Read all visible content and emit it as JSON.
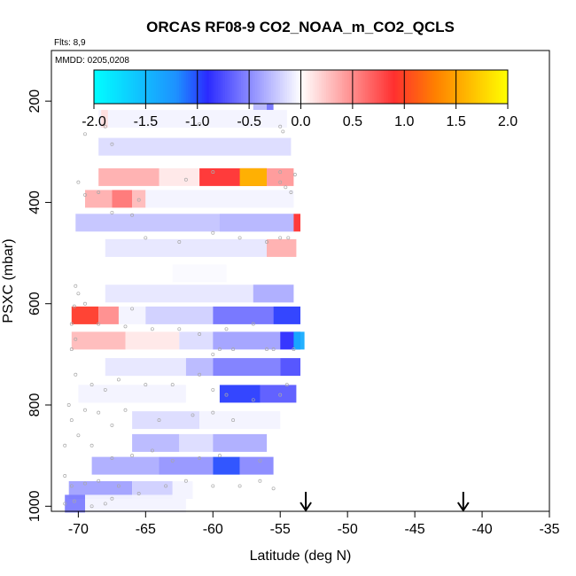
{
  "chart_data": {
    "type": "heatmap",
    "title": "ORCAS RF08-9 CO2_NOAA_m_CO2_QCLS",
    "flights_note": "Flts: 8,9",
    "date_note": "MMDD: 0205,0208",
    "xlabel": "Latitude (deg N)",
    "ylabel": "PSXC (mbar)",
    "xlim": [
      -72,
      -35
    ],
    "ylim": [
      1010,
      100
    ],
    "xticks": [
      -70,
      -65,
      -60,
      -55,
      -50,
      -45,
      -40,
      -35
    ],
    "xtick_labels": [
      "-70",
      "-65",
      "-60",
      "-55",
      "-50",
      "-45",
      "-40",
      "-35"
    ],
    "yticks": [
      200,
      400,
      600,
      800,
      1000
    ],
    "ytick_labels": [
      "200",
      "400",
      "600",
      "800",
      "1000"
    ],
    "colorbar": {
      "min": -2.0,
      "max": 2.0,
      "ticks": [
        -2.0,
        -1.5,
        -1.0,
        -0.5,
        0.0,
        0.5,
        1.0,
        1.5,
        2.0
      ],
      "tick_labels": [
        "-2.0",
        "-1.5",
        "-1.0",
        "-0.5",
        "0.0",
        "0.5",
        "1.0",
        "1.5",
        "2.0"
      ],
      "colors": [
        "#00ffff",
        "#1e90ff",
        "#2b2bff",
        "#ffffff",
        "#ff3030",
        "#ff8000",
        "#ffff00"
      ],
      "color_positions": [
        -2.0,
        -1.2,
        -0.9,
        0.0,
        0.9,
        1.3,
        2.0
      ]
    },
    "arrows_lat": [
      -53.1,
      -41.4
    ],
    "strips": [
      {
        "p": 200,
        "segs": [
          [
            -68.5,
            -55.5,
            0.0
          ],
          [
            -57,
            -56,
            -0.3
          ],
          [
            -56,
            -55.5,
            -0.6
          ]
        ]
      },
      {
        "p": 235,
        "segs": [
          [
            -68.5,
            -54.5,
            -0.05
          ],
          [
            -68.3,
            -67.8,
            0.15
          ]
        ]
      },
      {
        "p": 290,
        "segs": [
          [
            -68.5,
            -54.2,
            -0.15
          ]
        ]
      },
      {
        "p": 350,
        "segs": [
          [
            -68.5,
            -64,
            0.35
          ],
          [
            -64,
            -61,
            0.1
          ],
          [
            -61,
            -56,
            0.9
          ],
          [
            -58,
            -56,
            1.6
          ],
          [
            -56,
            -54,
            0.45
          ]
        ]
      },
      {
        "p": 393,
        "segs": [
          [
            -69.5,
            -67.5,
            0.35
          ],
          [
            -67.5,
            -66,
            0.6
          ],
          [
            -66,
            -65,
            0.3
          ],
          [
            -65,
            -54,
            -0.05
          ]
        ]
      },
      {
        "p": 440,
        "segs": [
          [
            -70.2,
            -54,
            -0.25
          ],
          [
            -59.5,
            -54,
            -0.3
          ],
          [
            -54,
            -53.5,
            0.9
          ]
        ]
      },
      {
        "p": 490,
        "segs": [
          [
            -68,
            -56,
            -0.1
          ],
          [
            -56,
            -53.8,
            0.35
          ]
        ]
      },
      {
        "p": 540,
        "segs": [
          [
            -63,
            -59,
            -0.02
          ]
        ]
      },
      {
        "p": 580,
        "segs": [
          [
            -68,
            -54,
            -0.1
          ],
          [
            -57,
            -54,
            -0.35
          ]
        ]
      },
      {
        "p": 623,
        "segs": [
          [
            -70.5,
            -68.5,
            0.95
          ],
          [
            -68.5,
            -67,
            0.5
          ],
          [
            -67,
            -65,
            -0.05
          ],
          [
            -65,
            -60,
            -0.2
          ],
          [
            -60,
            -55.5,
            -0.6
          ],
          [
            -55.5,
            -53.5,
            -0.95
          ]
        ]
      },
      {
        "p": 673,
        "segs": [
          [
            -70.5,
            -66.5,
            0.3
          ],
          [
            -66.5,
            -62.5,
            0.1
          ],
          [
            -62.5,
            -60,
            -0.15
          ],
          [
            -60,
            -55,
            -0.4
          ],
          [
            -55,
            -53.5,
            -0.9
          ],
          [
            -54,
            -53.2,
            -1.4
          ]
        ]
      },
      {
        "p": 725,
        "segs": [
          [
            -70,
            -68,
            0.0
          ],
          [
            -68,
            -62,
            -0.1
          ],
          [
            -62,
            -60,
            -0.3
          ],
          [
            -60,
            -55,
            -0.55
          ],
          [
            -55,
            -53.5,
            -0.75
          ]
        ]
      },
      {
        "p": 778,
        "segs": [
          [
            -70,
            -62,
            -0.05
          ],
          [
            -59.5,
            -56.5,
            -0.95
          ],
          [
            -56.5,
            -53.8,
            -0.7
          ]
        ]
      },
      {
        "p": 830,
        "segs": [
          [
            -69.5,
            -66,
            0.0
          ],
          [
            -66,
            -61,
            -0.15
          ],
          [
            -61,
            -55,
            -0.05
          ]
        ]
      },
      {
        "p": 875,
        "segs": [
          [
            -66,
            -62.5,
            -0.3
          ],
          [
            -62.5,
            -60,
            -0.15
          ],
          [
            -60,
            -56,
            -0.35
          ]
        ]
      },
      {
        "p": 920,
        "segs": [
          [
            -69,
            -64,
            -0.35
          ],
          [
            -64,
            -60,
            -0.45
          ],
          [
            -60,
            -58,
            -1.0
          ],
          [
            -58,
            -55.5,
            -0.5
          ]
        ]
      },
      {
        "p": 968,
        "segs": [
          [
            -70.7,
            -66,
            -0.4
          ],
          [
            -66,
            -63,
            -0.2
          ],
          [
            -63,
            -61.5,
            -0.05
          ]
        ]
      },
      {
        "p": 995,
        "segs": [
          [
            -71,
            -69.5,
            -0.55
          ],
          [
            -69.5,
            -62,
            -0.05
          ]
        ]
      }
    ],
    "sample_points": [
      [
        -67.5,
        185
      ],
      [
        -67,
        185
      ],
      [
        -66.5,
        185
      ],
      [
        -66,
        185
      ],
      [
        -65.5,
        185
      ],
      [
        -65,
        185
      ],
      [
        -64.5,
        185
      ],
      [
        -64,
        185
      ],
      [
        -63.5,
        185
      ],
      [
        -63,
        185
      ],
      [
        -62.5,
        185
      ],
      [
        -62,
        185
      ],
      [
        -60,
        185
      ],
      [
        -59.5,
        185
      ],
      [
        -59,
        185
      ],
      [
        -58.5,
        185
      ],
      [
        -58,
        185
      ],
      [
        -68.5,
        190
      ],
      [
        -61.5,
        190
      ],
      [
        -57.5,
        190
      ],
      [
        -56.5,
        190
      ],
      [
        -56,
        190
      ],
      [
        -69.5,
        265
      ],
      [
        -68,
        250
      ],
      [
        -67.5,
        285
      ],
      [
        -61,
        245
      ],
      [
        -55,
        250
      ],
      [
        -54.8,
        260
      ],
      [
        -70,
        360
      ],
      [
        -69.5,
        385
      ],
      [
        -68.5,
        380
      ],
      [
        -65.5,
        395
      ],
      [
        -62,
        355
      ],
      [
        -60,
        340
      ],
      [
        -55,
        340
      ],
      [
        -55,
        360
      ],
      [
        -54.6,
        370
      ],
      [
        -54.2,
        380
      ],
      [
        -53.9,
        345
      ],
      [
        -67.5,
        420
      ],
      [
        -66,
        425
      ],
      [
        -60,
        460
      ],
      [
        -58,
        470
      ],
      [
        -56,
        478
      ],
      [
        -55,
        470
      ],
      [
        -54.4,
        470
      ],
      [
        -65,
        470
      ],
      [
        -62.5,
        478
      ],
      [
        -70.2,
        565
      ],
      [
        -70,
        580
      ],
      [
        -70.3,
        605
      ],
      [
        -69.5,
        600
      ],
      [
        -66,
        610
      ],
      [
        -70.5,
        640
      ],
      [
        -70.2,
        670
      ],
      [
        -70.5,
        690
      ],
      [
        -68.5,
        640
      ],
      [
        -66.5,
        645
      ],
      [
        -64.5,
        650
      ],
      [
        -62.5,
        650
      ],
      [
        -61,
        660
      ],
      [
        -59,
        650
      ],
      [
        -57,
        640
      ],
      [
        -56,
        690
      ],
      [
        -60,
        700
      ],
      [
        -59.5,
        690
      ],
      [
        -58.5,
        690
      ],
      [
        -55.5,
        690
      ],
      [
        -54,
        690
      ],
      [
        -70.2,
        740
      ],
      [
        -69,
        760
      ],
      [
        -68,
        770
      ],
      [
        -67,
        750
      ],
      [
        -65,
        760
      ],
      [
        -63,
        760
      ],
      [
        -61,
        740
      ],
      [
        -60,
        770
      ],
      [
        -59,
        780
      ],
      [
        -57,
        790
      ],
      [
        -55,
        780
      ],
      [
        -54.5,
        760
      ],
      [
        -70.7,
        800
      ],
      [
        -70.5,
        830
      ],
      [
        -69.5,
        810
      ],
      [
        -68.5,
        815
      ],
      [
        -67.5,
        840
      ],
      [
        -66.5,
        810
      ],
      [
        -64,
        830
      ],
      [
        -61.5,
        820
      ],
      [
        -60,
        815
      ],
      [
        -58.5,
        830
      ],
      [
        -71,
        880
      ],
      [
        -70,
        860
      ],
      [
        -69,
        880
      ],
      [
        -67.5,
        905
      ],
      [
        -66,
        900
      ],
      [
        -64.5,
        890
      ],
      [
        -63,
        910
      ],
      [
        -61,
        905
      ],
      [
        -59.5,
        900
      ],
      [
        -56.5,
        910
      ],
      [
        -71,
        940
      ],
      [
        -70.5,
        960
      ],
      [
        -69.5,
        955
      ],
      [
        -68.5,
        950
      ],
      [
        -67,
        960
      ],
      [
        -65.5,
        975
      ],
      [
        -63.5,
        960
      ],
      [
        -62,
        950
      ],
      [
        -60,
        960
      ],
      [
        -58,
        960
      ],
      [
        -56.5,
        950
      ],
      [
        -55.5,
        965
      ],
      [
        -71,
        995
      ],
      [
        -70.3,
        990
      ],
      [
        -69,
        1000
      ],
      [
        -68,
        995
      ],
      [
        -67.5,
        985
      ]
    ]
  }
}
